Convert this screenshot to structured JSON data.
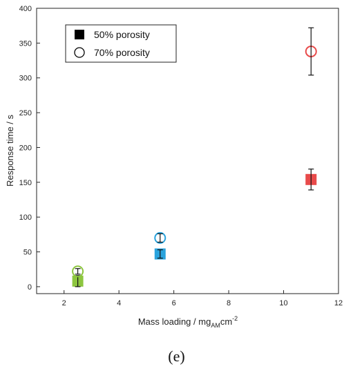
{
  "chart_data": {
    "type": "scatter",
    "xlabel": "Mass loading / mg",
    "xlabel_sub": "AM",
    "xlabel_tail": "cm",
    "xlabel_sup": "-2",
    "ylabel": "Response time / s",
    "xlim": [
      1,
      12
    ],
    "ylim": [
      -10,
      400
    ],
    "xticks": [
      2,
      4,
      6,
      8,
      10,
      12
    ],
    "yticks": [
      0,
      50,
      100,
      150,
      200,
      250,
      300,
      350,
      400
    ],
    "legend_position": "top-left",
    "series": [
      {
        "name": "50% porosity",
        "marker": "filled-square",
        "points": [
          {
            "x": 2.5,
            "y": 8,
            "err": 8,
            "color": "#8dc63f"
          },
          {
            "x": 5.5,
            "y": 47,
            "err": 6,
            "color": "#29a3dd"
          },
          {
            "x": 11.0,
            "y": 154,
            "err": 15,
            "color": "#e84a4a"
          }
        ]
      },
      {
        "name": "70% porosity",
        "marker": "open-circle",
        "points": [
          {
            "x": 2.5,
            "y": 22,
            "err": 4,
            "color": "#8dc63f"
          },
          {
            "x": 5.5,
            "y": 70,
            "err": 6,
            "color": "#29a3dd"
          },
          {
            "x": 11.0,
            "y": 338,
            "err": 34,
            "color": "#e84a4a"
          }
        ]
      }
    ]
  },
  "panel_label": "(e)"
}
